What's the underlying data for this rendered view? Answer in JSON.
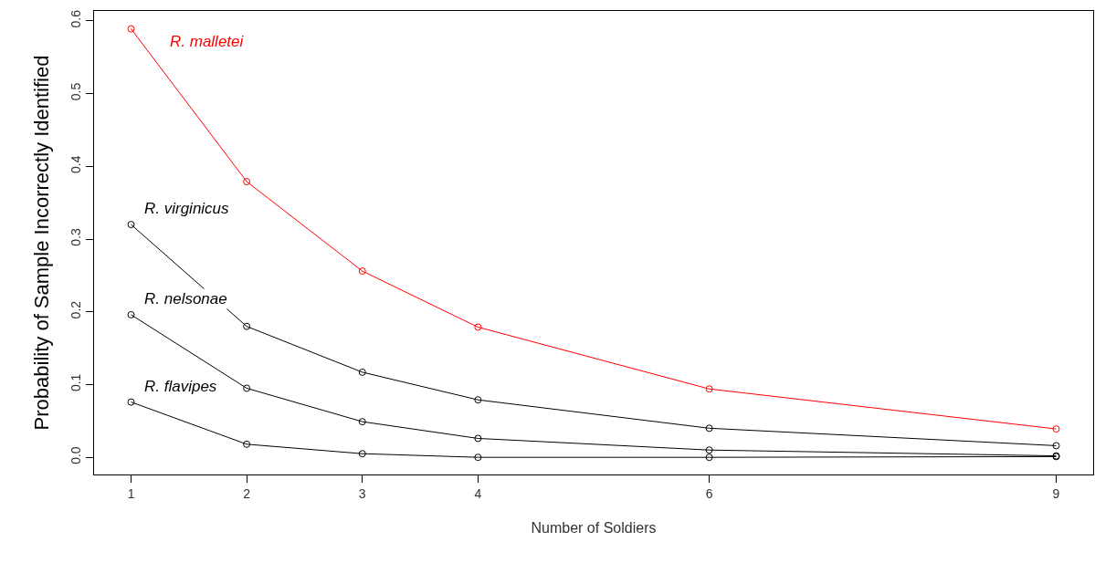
{
  "chart_data": {
    "type": "line",
    "xlabel": "Number of Soldiers",
    "ylabel": "Probability of Sample Incorrectly Identified",
    "x": [
      1,
      2,
      3,
      4,
      6,
      9
    ],
    "series": [
      {
        "name": "R. malletei",
        "color": "#ff0000",
        "values": [
          0.589,
          0.379,
          0.256,
          0.179,
          0.094,
          0.039
        ]
      },
      {
        "name": "R. virginicus",
        "color": "#000000",
        "values": [
          0.32,
          0.18,
          0.117,
          0.079,
          0.04,
          0.016
        ]
      },
      {
        "name": "R. nelsonae",
        "color": "#000000",
        "values": [
          0.196,
          0.095,
          0.049,
          0.026,
          0.01,
          0.002
        ]
      },
      {
        "name": "R. flavipes",
        "color": "#000000",
        "values": [
          0.076,
          0.018,
          0.005,
          0.0,
          0.0,
          0.001
        ]
      }
    ],
    "xlim": [
      0.68,
      9.32
    ],
    "ylim": [
      -0.0236,
      0.6136
    ],
    "xticks": [
      1,
      2,
      3,
      4,
      6,
      9
    ],
    "yticks": [
      {
        "value": 0,
        "label": "0.0"
      },
      {
        "value": 0.1,
        "label": "0.1"
      },
      {
        "value": 0.2,
        "label": "0.2"
      },
      {
        "value": 0.3,
        "label": "0.3"
      },
      {
        "value": 0.4,
        "label": "0.4"
      },
      {
        "value": 0.5,
        "label": "0.5"
      },
      {
        "value": 0.6,
        "label": "0.6"
      }
    ],
    "marker": "circle",
    "line_style": "solid",
    "legend": false
  }
}
